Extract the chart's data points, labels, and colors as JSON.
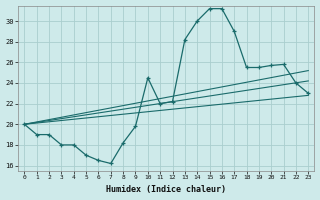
{
  "xlabel": "Humidex (Indice chaleur)",
  "bg_color": "#ceeaea",
  "grid_color": "#aacece",
  "line_color": "#1a6b6b",
  "xlim": [
    -0.5,
    23.5
  ],
  "ylim": [
    15.5,
    31.5
  ],
  "xticks": [
    0,
    1,
    2,
    3,
    4,
    5,
    6,
    7,
    8,
    9,
    10,
    11,
    12,
    13,
    14,
    15,
    16,
    17,
    18,
    19,
    20,
    21,
    22,
    23
  ],
  "yticks": [
    16,
    18,
    20,
    22,
    24,
    26,
    28,
    30
  ],
  "zigzag_x": [
    0,
    1,
    2,
    3,
    4,
    5,
    6,
    7,
    8,
    9,
    10,
    11,
    12,
    13,
    14,
    15,
    16,
    17,
    18,
    19,
    20,
    21,
    22,
    23
  ],
  "zigzag_y": [
    20.0,
    19.0,
    19.0,
    18.0,
    18.0,
    17.0,
    16.5,
    16.2,
    18.2,
    19.8,
    24.5,
    22.0,
    22.2,
    28.2,
    30.0,
    31.2,
    31.2,
    29.0,
    25.5,
    25.5,
    25.7,
    25.8,
    24.0,
    23.0
  ],
  "trend1_x": [
    0,
    23
  ],
  "trend1_y": [
    20.0,
    25.2
  ],
  "trend2_x": [
    0,
    23
  ],
  "trend2_y": [
    20.0,
    22.8
  ],
  "trend3_x": [
    0,
    23
  ],
  "trend3_y": [
    20.0,
    24.2
  ]
}
